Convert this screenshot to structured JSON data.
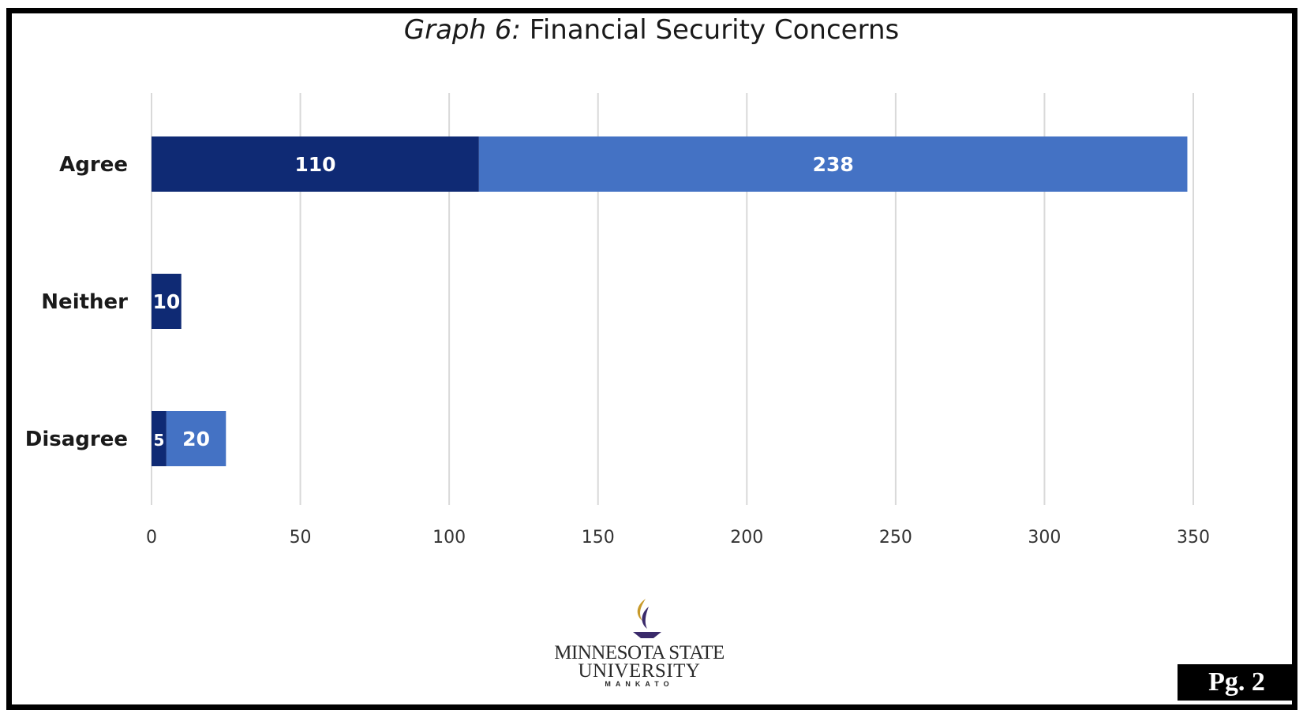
{
  "title": {
    "prefix": "Graph 6:",
    "main": "Financial Security Concerns"
  },
  "chart_data": {
    "type": "bar",
    "orientation": "horizontal",
    "stacked": true,
    "categories": [
      "Agree",
      "Neither",
      "Disagree"
    ],
    "series": [
      {
        "values": [
          110,
          10,
          5
        ],
        "color": "#0f2a74"
      },
      {
        "values": [
          238,
          0,
          20
        ],
        "color": "#4472c4"
      }
    ],
    "data_labels": [
      [
        "110",
        "10",
        "5"
      ],
      [
        "238",
        "",
        "20"
      ]
    ],
    "xlim": [
      0,
      350
    ],
    "x_ticks": [
      0,
      50,
      100,
      150,
      200,
      250,
      300,
      350
    ],
    "grid": true,
    "legend": "none"
  },
  "logo": {
    "line1": "MINNESOTA STATE",
    "line2": "UNIVERSITY",
    "line3": "MANKATO"
  },
  "page_label": "Pg. 2"
}
